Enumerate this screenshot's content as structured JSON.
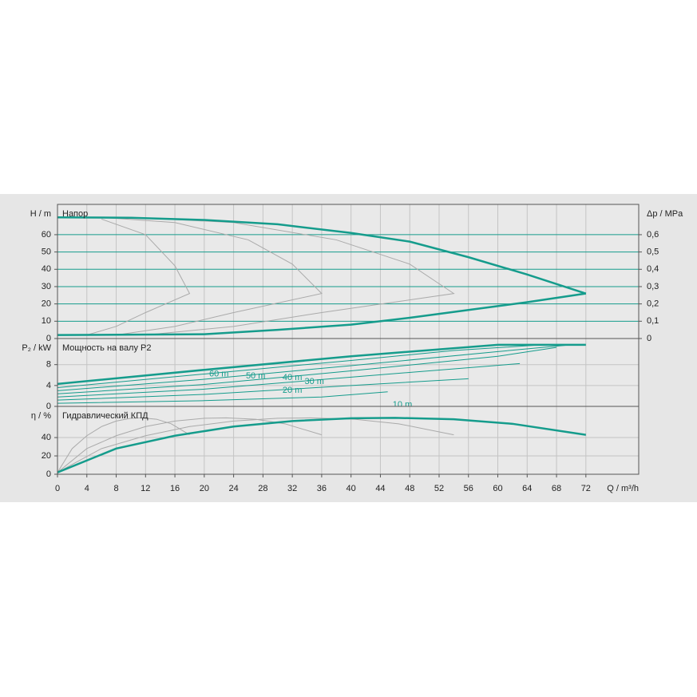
{
  "chart_data": [
    {
      "type": "line",
      "title": "Напор",
      "ylabel": "H / m",
      "y2label": "Δp / MPa",
      "xlim": [
        0,
        79.2
      ],
      "ylim": [
        0,
        77.5
      ],
      "yticks": [
        0,
        10,
        20,
        30,
        40,
        50,
        60
      ],
      "y2lim": [
        0,
        0.775
      ],
      "y2ticks": [
        0,
        {
          "value": 0.1,
          "label": "0,1"
        },
        {
          "value": 0.2,
          "label": "0,2"
        },
        {
          "value": 0.3,
          "label": "0,3"
        },
        {
          "value": 0.4,
          "label": "0,4"
        },
        {
          "value": 0.5,
          "label": "0,5"
        },
        {
          "value": 0.6,
          "label": "0,6"
        }
      ],
      "grid": true,
      "grid_color": "#159c8c",
      "series": [
        {
          "color": "#aaaaaa",
          "linewidth": 1,
          "x": [
            6,
            12,
            16,
            18,
            12,
            8,
            4
          ],
          "values": [
            69,
            60,
            42,
            26,
            15,
            7,
            2
          ]
        },
        {
          "color": "#aaaaaa",
          "linewidth": 1,
          "x": [
            6,
            16,
            26,
            32,
            36,
            24,
            16,
            8
          ],
          "values": [
            70,
            67,
            57,
            43,
            26,
            15,
            7,
            2
          ]
        },
        {
          "color": "#aaaaaa",
          "linewidth": 1,
          "x": [
            10,
            24,
            38,
            48,
            54,
            36,
            24,
            12
          ],
          "values": [
            70,
            67,
            57,
            43,
            26,
            15,
            7,
            2
          ]
        },
        {
          "color": "#159c8c",
          "linewidth": 2.5,
          "x": [
            0,
            10,
            20,
            30,
            40,
            48,
            56,
            64,
            72
          ],
          "values": [
            70,
            69.8,
            68.5,
            66,
            61,
            56,
            47,
            37,
            26
          ]
        },
        {
          "color": "#159c8c",
          "linewidth": 2.5,
          "x": [
            0,
            20,
            30,
            40,
            48,
            56,
            64,
            72
          ],
          "values": [
            2,
            2.5,
            5,
            8,
            12,
            16.5,
            21,
            26
          ]
        }
      ]
    },
    {
      "type": "line",
      "title": "Мощность на валу P2",
      "ylabel": "P₂ / kW",
      "xlim": [
        0,
        79.2
      ],
      "ylim": [
        0,
        13
      ],
      "yticks": [
        0,
        4,
        8
      ],
      "grid": true,
      "series": [
        {
          "color": "#159c8c",
          "linewidth": 2.5,
          "x": [
            0,
            20,
            40,
            60,
            72
          ],
          "values": [
            4.3,
            7,
            9.6,
            11.8,
            11.8
          ]
        },
        {
          "name": "60 m",
          "color": "#159c8c",
          "linewidth": 1,
          "x": [
            0,
            20,
            40,
            54,
            66
          ],
          "values": [
            3.6,
            6.2,
            8.8,
            10.7,
            11.8
          ]
        },
        {
          "name": "50 m",
          "color": "#159c8c",
          "linewidth": 1,
          "x": [
            0,
            20,
            40,
            60,
            70
          ],
          "values": [
            3.0,
            5.2,
            7.8,
            10.5,
            11.8
          ]
        },
        {
          "name": "40 m",
          "color": "#159c8c",
          "linewidth": 1,
          "x": [
            0,
            20,
            40,
            60,
            68
          ],
          "values": [
            2.4,
            4.2,
            6.8,
            9.6,
            11.3
          ]
        },
        {
          "name": "30 m",
          "color": "#159c8c",
          "linewidth": 1,
          "x": [
            0,
            20,
            40,
            63
          ],
          "values": [
            1.8,
            3.3,
            5.6,
            8.2
          ]
        },
        {
          "name": "20 m",
          "color": "#159c8c",
          "linewidth": 1,
          "x": [
            0,
            20,
            40,
            56
          ],
          "values": [
            1.2,
            2.3,
            4.0,
            5.3
          ]
        },
        {
          "name": "10 m",
          "color": "#159c8c",
          "linewidth": 1,
          "x": [
            0,
            20,
            36,
            45
          ],
          "values": [
            0.6,
            1.1,
            1.8,
            2.8
          ]
        }
      ]
    },
    {
      "type": "line",
      "title": "Гидравлический КПД",
      "ylabel": "η / %",
      "xlabel": "Q / m³/h",
      "xlim": [
        0,
        79.2
      ],
      "ylim": [
        0,
        74
      ],
      "yticks": [
        0,
        20,
        40
      ],
      "xticks": [
        0,
        4,
        8,
        12,
        16,
        20,
        24,
        28,
        32,
        36,
        40,
        44,
        48,
        52,
        56,
        60,
        64,
        68,
        72
      ],
      "grid": true,
      "series": [
        {
          "color": "#aaaaaa",
          "linewidth": 1,
          "x": [
            0,
            2,
            4,
            6,
            8,
            10,
            11.5,
            13.5,
            15.5,
            18
          ],
          "values": [
            2,
            28,
            42,
            52,
            58,
            61,
            61.5,
            60,
            55,
            43
          ]
        },
        {
          "color": "#aaaaaa",
          "linewidth": 1,
          "x": [
            0,
            4,
            8,
            12,
            16,
            20,
            23,
            27,
            31,
            36
          ],
          "values": [
            2,
            28,
            42,
            52,
            58,
            61,
            61.5,
            60,
            55,
            43
          ]
        },
        {
          "color": "#aaaaaa",
          "linewidth": 1,
          "x": [
            0,
            6,
            12,
            18,
            24,
            30,
            34.5,
            40.5,
            46.5,
            54
          ],
          "values": [
            2,
            28,
            42,
            52,
            58,
            61,
            61.5,
            60,
            55,
            43
          ]
        },
        {
          "color": "#159c8c",
          "linewidth": 2.5,
          "x": [
            0,
            8,
            16,
            24,
            32,
            40,
            46,
            54,
            62,
            72
          ],
          "values": [
            2,
            28,
            42,
            52,
            58,
            61,
            61.5,
            60,
            55,
            43
          ]
        }
      ]
    }
  ]
}
